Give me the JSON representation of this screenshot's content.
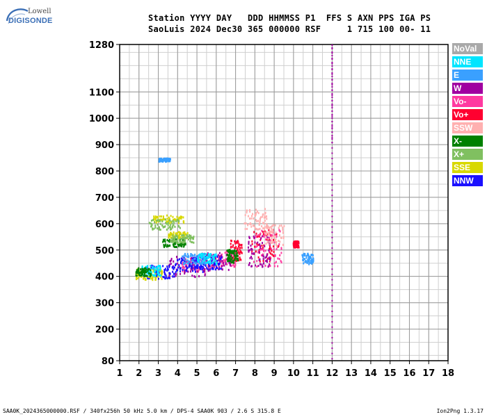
{
  "logo": {
    "line1": "Lowell",
    "line2": "DIGISONDE"
  },
  "header": {
    "line1": "Station YYYY DAY   DDD HHMMSS P1  FFS S AXN PPS IGA PS",
    "line2": "SaoLuis 2024 Dec30 365 000000 RSF     1 715 100 00- 11"
  },
  "legend": [
    {
      "label": "NoVal",
      "color": "#a9a9a9"
    },
    {
      "label": "NNE",
      "color": "#00e5ff"
    },
    {
      "label": "E",
      "color": "#3aa0ff"
    },
    {
      "label": "W",
      "color": "#a000a0"
    },
    {
      "label": "Vo-",
      "color": "#ff3aa0"
    },
    {
      "label": "Vo+",
      "color": "#ff0030"
    },
    {
      "label": "SSW",
      "color": "#ffb0b0"
    },
    {
      "label": "X-",
      "color": "#008000"
    },
    {
      "label": "X+",
      "color": "#80c060"
    },
    {
      "label": "SSE",
      "color": "#d8d800"
    },
    {
      "label": "NNW",
      "color": "#1a10ff"
    }
  ],
  "footer": {
    "left": "SAA0K_2024365000000.RSF / 340fx256h 50 kHz 5.0 km / DPS-4 SAA0K 903 / 2.6 S 315.8 E",
    "right": "Ion2Png 1.3.17"
  },
  "chart_data": {
    "type": "scatter",
    "xlim": [
      1,
      18
    ],
    "ylim": [
      80,
      1280
    ],
    "xticks": [
      "1",
      "2",
      "3",
      "4",
      "5",
      "6",
      "7",
      "8",
      "9",
      "10",
      "11",
      "12",
      "13",
      "14",
      "15",
      "16",
      "17",
      "18"
    ],
    "yticks": [
      80,
      200,
      300,
      400,
      500,
      600,
      700,
      800,
      900,
      1000,
      1100,
      1280
    ],
    "grid": true,
    "x_minor_step": 0.5,
    "y_minor_step": 50,
    "series": [
      {
        "color": "#ff0030",
        "clusters": [
          [
            8.5,
            520,
            0.7,
            60
          ],
          [
            10.1,
            525,
            0.15,
            12
          ],
          [
            7.0,
            500,
            0.3,
            40
          ]
        ]
      },
      {
        "color": "#ff3aa0",
        "clusters": [
          [
            8.6,
            510,
            0.8,
            70
          ],
          [
            6.5,
            470,
            0.5,
            30
          ],
          [
            5.0,
            450,
            0.8,
            30
          ]
        ]
      },
      {
        "color": "#a000a0",
        "clusters": [
          [
            4.5,
            440,
            1.0,
            40
          ],
          [
            6.0,
            460,
            0.8,
            35
          ],
          [
            8.2,
            500,
            0.6,
            60
          ]
        ]
      },
      {
        "color": "#1a10ff",
        "clusters": [
          [
            3.0,
            420,
            0.8,
            25
          ],
          [
            4.5,
            450,
            0.8,
            30
          ],
          [
            5.5,
            455,
            0.8,
            25
          ]
        ]
      },
      {
        "color": "#d8d800",
        "clusters": [
          [
            2.5,
            410,
            0.7,
            20
          ],
          [
            3.5,
            620,
            0.8,
            15
          ],
          [
            4.0,
            560,
            0.5,
            12
          ]
        ]
      },
      {
        "color": "#3aa0ff",
        "clusters": [
          [
            3.3,
            845,
            0.3,
            6
          ],
          [
            4.8,
            470,
            0.6,
            20
          ],
          [
            10.7,
            470,
            0.3,
            20
          ]
        ]
      },
      {
        "color": "#00e5ff",
        "clusters": [
          [
            2.6,
            425,
            0.5,
            20
          ],
          [
            5.5,
            470,
            0.5,
            20
          ]
        ]
      },
      {
        "color": "#008000",
        "clusters": [
          [
            2.2,
            420,
            0.4,
            15
          ],
          [
            3.8,
            530,
            0.6,
            15
          ],
          [
            6.8,
            480,
            0.3,
            25
          ]
        ]
      },
      {
        "color": "#80c060",
        "clusters": [
          [
            3.3,
            600,
            0.8,
            20
          ],
          [
            4.2,
            545,
            0.6,
            15
          ]
        ]
      },
      {
        "color": "#ffb0b0",
        "clusters": [
          [
            8.0,
            620,
            0.6,
            40
          ],
          [
            9.0,
            560,
            0.5,
            40
          ]
        ]
      }
    ],
    "vertical_trace": {
      "x": 12.0,
      "y_from": 80,
      "y_to": 1280,
      "color": "#a000a0"
    }
  }
}
